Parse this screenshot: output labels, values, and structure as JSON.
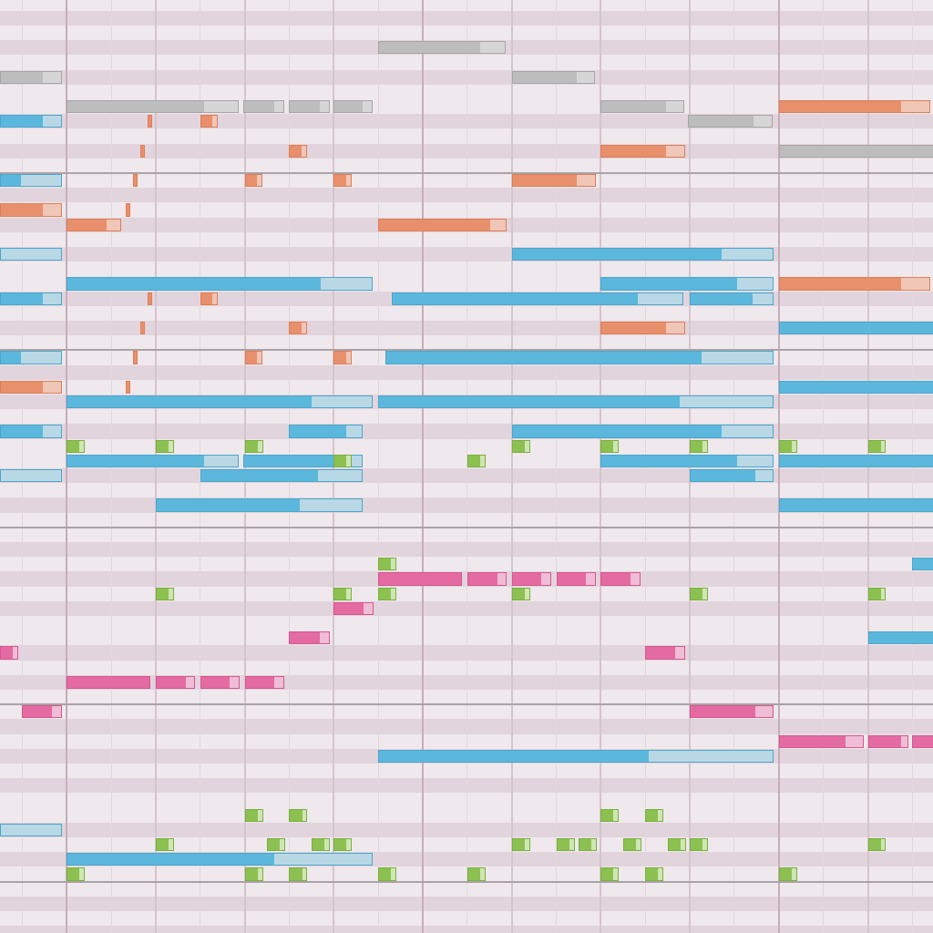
{
  "view": "piano-roll",
  "colors": {
    "row_light": "#efe8ec",
    "row_dark": "#e2d4dc",
    "beat_line": "#e3d6dd",
    "half_measure_line": "#d6c4cd",
    "measure_line": "#c7adbb",
    "octave_line": "#aaa2a6",
    "tracks": {
      "blue": {
        "fill": "#5bb8dc",
        "fade": "#b9d8e5",
        "border": "#4aa6cc"
      },
      "orange": {
        "fill": "#e8906c",
        "fade": "#f0c6b6",
        "border": "#dc7e58"
      },
      "gray": {
        "fill": "#bdbdbd",
        "fade": "#d6d6d6",
        "border": "#a6a6a6"
      },
      "green": {
        "fill": "#8cc152",
        "fade": "#cfe6b2",
        "border": "#79b040"
      },
      "pink": {
        "fill": "#e46aa2",
        "fade": "#efbdd5",
        "border": "#d65690"
      }
    }
  },
  "grid": {
    "beats_per_measure": 8,
    "first_beat": -1,
    "last_beat": 19
  },
  "notes": [
    {
      "row": 3,
      "start": 7,
      "len": 2.9,
      "fade": 0.55,
      "track": "gray"
    },
    {
      "row": 5,
      "start": -1.5,
      "len": 1.43,
      "fade": 0.4,
      "track": "gray"
    },
    {
      "row": 5,
      "start": 10,
      "len": 1.92,
      "fade": 0.4,
      "track": "gray"
    },
    {
      "row": 7,
      "start": 0,
      "len": 3.9,
      "fade": 0.75,
      "track": "gray"
    },
    {
      "row": 7,
      "start": 3.97,
      "len": 0.96,
      "fade": 0.2,
      "track": "gray"
    },
    {
      "row": 7,
      "start": 5,
      "len": 0.95,
      "fade": 0.2,
      "track": "gray"
    },
    {
      "row": 7,
      "start": 6,
      "len": 0.92,
      "fade": 0.2,
      "track": "gray"
    },
    {
      "row": 7,
      "start": 12,
      "len": 1.92,
      "fade": 0.4,
      "track": "gray"
    },
    {
      "row": 7,
      "start": 16,
      "len": 3.45,
      "fade": 0.65,
      "track": "orange"
    },
    {
      "row": 8,
      "start": -1.5,
      "len": 1.43,
      "fade": 0.4,
      "track": "blue"
    },
    {
      "row": 8,
      "start": 1.82,
      "len": 0.11,
      "fade": 0,
      "track": "orange"
    },
    {
      "row": 8,
      "start": 3,
      "len": 0.43,
      "fade": 0.1,
      "track": "orange"
    },
    {
      "row": 8,
      "start": 13.95,
      "len": 1.95,
      "fade": 0.4,
      "track": "gray"
    },
    {
      "row": 10,
      "start": 1.66,
      "len": 0.11,
      "fade": 0,
      "track": "orange"
    },
    {
      "row": 10,
      "start": 5,
      "len": 0.44,
      "fade": 0.1,
      "track": "orange"
    },
    {
      "row": 10,
      "start": 12,
      "len": 1.93,
      "fade": 0.4,
      "track": "orange"
    },
    {
      "row": 10,
      "start": 16,
      "len": 4,
      "fade": 0.3,
      "track": "gray"
    },
    {
      "row": 12,
      "start": -1.5,
      "len": 1.43,
      "fade": 0.9,
      "track": "blue"
    },
    {
      "row": 12,
      "start": 1.5,
      "len": 0.11,
      "fade": 0,
      "track": "orange"
    },
    {
      "row": 12,
      "start": 4,
      "len": 0.44,
      "fade": 0.1,
      "track": "orange"
    },
    {
      "row": 12,
      "start": 6,
      "len": 0.44,
      "fade": 0.1,
      "track": "orange"
    },
    {
      "row": 12,
      "start": 10,
      "len": 1.93,
      "fade": 0.4,
      "track": "orange"
    },
    {
      "row": 14,
      "start": -1.5,
      "len": 1.43,
      "fade": 0.4,
      "track": "orange"
    },
    {
      "row": 14,
      "start": 1.33,
      "len": 0.11,
      "fade": 0,
      "track": "orange"
    },
    {
      "row": 15,
      "start": 0,
      "len": 1.26,
      "fade": 0.3,
      "track": "orange"
    },
    {
      "row": 15,
      "start": 7,
      "len": 2.92,
      "fade": 0.35,
      "track": "orange"
    },
    {
      "row": 17,
      "start": -1.5,
      "len": 1.43,
      "fade": 1.43,
      "track": "blue"
    },
    {
      "row": 17,
      "start": 10,
      "len": 5.93,
      "fade": 1.15,
      "track": "blue"
    },
    {
      "row": 19,
      "start": 0,
      "len": 6.92,
      "fade": 1.15,
      "track": "blue"
    },
    {
      "row": 19,
      "start": 12,
      "len": 3.93,
      "fade": 0.8,
      "track": "blue"
    },
    {
      "row": 19,
      "start": 16,
      "len": 3.45,
      "fade": 0.65,
      "track": "orange"
    },
    {
      "row": 20,
      "start": -1.5,
      "len": 1.43,
      "fade": 0.4,
      "track": "blue"
    },
    {
      "row": 20,
      "start": 1.82,
      "len": 0.11,
      "fade": 0,
      "track": "orange"
    },
    {
      "row": 20,
      "start": 3,
      "len": 0.43,
      "fade": 0.1,
      "track": "orange"
    },
    {
      "row": 20,
      "start": 7.3,
      "len": 6.6,
      "fade": 1,
      "track": "blue"
    },
    {
      "row": 20,
      "start": 14,
      "len": 1.93,
      "fade": 0.45,
      "track": "blue"
    },
    {
      "row": 22,
      "start": 1.66,
      "len": 0.11,
      "fade": 0,
      "track": "orange"
    },
    {
      "row": 22,
      "start": 5,
      "len": 0.44,
      "fade": 0.1,
      "track": "orange"
    },
    {
      "row": 22,
      "start": 12,
      "len": 1.93,
      "fade": 0.4,
      "track": "orange"
    },
    {
      "row": 22,
      "start": 16,
      "len": 4,
      "fade": 0.3,
      "track": "blue"
    },
    {
      "row": 24,
      "start": -1.5,
      "len": 1.43,
      "fade": 0.9,
      "track": "blue"
    },
    {
      "row": 24,
      "start": 1.5,
      "len": 0.11,
      "fade": 0,
      "track": "orange"
    },
    {
      "row": 24,
      "start": 4,
      "len": 0.44,
      "fade": 0.1,
      "track": "orange"
    },
    {
      "row": 24,
      "start": 6,
      "len": 0.44,
      "fade": 0.1,
      "track": "orange"
    },
    {
      "row": 24,
      "start": 7.17,
      "len": 8.76,
      "fade": 1.6,
      "track": "blue"
    },
    {
      "row": 26,
      "start": -1.5,
      "len": 1.43,
      "fade": 0.4,
      "track": "orange"
    },
    {
      "row": 26,
      "start": 1.33,
      "len": 0.11,
      "fade": 0,
      "track": "orange"
    },
    {
      "row": 26,
      "start": 16,
      "len": 4,
      "fade": 0,
      "track": "blue"
    },
    {
      "row": 27,
      "start": 0,
      "len": 6.92,
      "fade": 1.35,
      "track": "blue"
    },
    {
      "row": 27,
      "start": 7,
      "len": 8.93,
      "fade": 2.1,
      "track": "blue"
    },
    {
      "row": 29,
      "start": -1.5,
      "len": 1.43,
      "fade": 0.4,
      "track": "blue"
    },
    {
      "row": 29,
      "start": 5,
      "len": 1.7,
      "fade": 0.35,
      "track": "blue"
    },
    {
      "row": 29,
      "start": 10,
      "len": 5.93,
      "fade": 1.15,
      "track": "blue"
    },
    {
      "row": 30,
      "start": 0,
      "len": 0.45,
      "fade": 0.1,
      "track": "green"
    },
    {
      "row": 30,
      "start": 2,
      "len": 0.45,
      "fade": 0.1,
      "track": "green"
    },
    {
      "row": 30,
      "start": 4,
      "len": 0.45,
      "fade": 0.1,
      "track": "green"
    },
    {
      "row": 30,
      "start": 10,
      "len": 0.45,
      "fade": 0.1,
      "track": "green"
    },
    {
      "row": 30,
      "start": 12,
      "len": 0.45,
      "fade": 0.1,
      "track": "green"
    },
    {
      "row": 30,
      "start": 14,
      "len": 0.45,
      "fade": 0.1,
      "track": "green"
    },
    {
      "row": 30,
      "start": 16,
      "len": 0.45,
      "fade": 0.1,
      "track": "green"
    },
    {
      "row": 30,
      "start": 18,
      "len": 0.45,
      "fade": 0.1,
      "track": "green"
    },
    {
      "row": 31,
      "start": 0,
      "len": 3.9,
      "fade": 0.75,
      "track": "blue"
    },
    {
      "row": 31,
      "start": 3.97,
      "len": 2.73,
      "fade": 0.3,
      "track": "blue"
    },
    {
      "row": 31,
      "start": 6,
      "len": 0.45,
      "fade": 0.1,
      "track": "green"
    },
    {
      "row": 31,
      "start": 9,
      "len": 0.45,
      "fade": 0.1,
      "track": "green"
    },
    {
      "row": 31,
      "start": 12,
      "len": 3.93,
      "fade": 0.8,
      "track": "blue"
    },
    {
      "row": 31,
      "start": 16,
      "len": 4,
      "fade": 0,
      "track": "blue"
    },
    {
      "row": 32,
      "start": -1.5,
      "len": 1.43,
      "fade": 1.43,
      "track": "blue"
    },
    {
      "row": 32,
      "start": 3,
      "len": 3.7,
      "fade": 1,
      "track": "blue"
    },
    {
      "row": 32,
      "start": 14,
      "len": 1.93,
      "fade": 0.4,
      "track": "blue"
    },
    {
      "row": 34,
      "start": 2,
      "len": 4.7,
      "fade": 1.4,
      "track": "blue"
    },
    {
      "row": 34,
      "start": 16,
      "len": 4,
      "fade": 0.3,
      "track": "blue"
    },
    {
      "row": 38,
      "start": 7,
      "len": 0.45,
      "fade": 0.1,
      "track": "green"
    },
    {
      "row": 38,
      "start": 19,
      "len": 1,
      "fade": 0,
      "track": "blue"
    },
    {
      "row": 39,
      "start": 7,
      "len": 1.92,
      "fade": 0,
      "track": "pink"
    },
    {
      "row": 39,
      "start": 9,
      "len": 0.93,
      "fade": 0.2,
      "track": "pink"
    },
    {
      "row": 39,
      "start": 10,
      "len": 0.93,
      "fade": 0.2,
      "track": "pink"
    },
    {
      "row": 39,
      "start": 11,
      "len": 0.93,
      "fade": 0.2,
      "track": "pink"
    },
    {
      "row": 39,
      "start": 12,
      "len": 0.93,
      "fade": 0.2,
      "track": "pink"
    },
    {
      "row": 40,
      "start": 2,
      "len": 0.45,
      "fade": 0.1,
      "track": "green"
    },
    {
      "row": 40,
      "start": 6,
      "len": 0.45,
      "fade": 0.1,
      "track": "green"
    },
    {
      "row": 40,
      "start": 7,
      "len": 0.45,
      "fade": 0.1,
      "track": "green"
    },
    {
      "row": 40,
      "start": 10,
      "len": 0.45,
      "fade": 0.1,
      "track": "green"
    },
    {
      "row": 40,
      "start": 14,
      "len": 0.45,
      "fade": 0.1,
      "track": "green"
    },
    {
      "row": 40,
      "start": 18,
      "len": 0.45,
      "fade": 0.1,
      "track": "green"
    },
    {
      "row": 41,
      "start": 6,
      "len": 0.93,
      "fade": 0.2,
      "track": "pink"
    },
    {
      "row": 43,
      "start": 5,
      "len": 0.95,
      "fade": 0.2,
      "track": "pink"
    },
    {
      "row": 43,
      "start": 18,
      "len": 2,
      "fade": 0,
      "track": "blue"
    },
    {
      "row": 44,
      "start": -1.5,
      "len": 0.45,
      "fade": 0.1,
      "track": "pink"
    },
    {
      "row": 44,
      "start": 13,
      "len": 0.93,
      "fade": 0.2,
      "track": "pink"
    },
    {
      "row": 46,
      "start": 0,
      "len": 1.92,
      "fade": 0,
      "track": "pink"
    },
    {
      "row": 46,
      "start": 2,
      "len": 0.93,
      "fade": 0.2,
      "track": "pink"
    },
    {
      "row": 46,
      "start": 3,
      "len": 0.93,
      "fade": 0.2,
      "track": "pink"
    },
    {
      "row": 46,
      "start": 4,
      "len": 0.93,
      "fade": 0.2,
      "track": "pink"
    },
    {
      "row": 48,
      "start": -1,
      "len": 0.93,
      "fade": 0.2,
      "track": "pink"
    },
    {
      "row": 48,
      "start": 14,
      "len": 1.93,
      "fade": 0.4,
      "track": "pink"
    },
    {
      "row": 50,
      "start": 16,
      "len": 1.95,
      "fade": 0.4,
      "track": "pink"
    },
    {
      "row": 50,
      "start": 18,
      "len": 0.95,
      "fade": 0.15,
      "track": "pink"
    },
    {
      "row": 50,
      "start": 19,
      "len": 1,
      "fade": 0,
      "track": "pink"
    },
    {
      "row": 51,
      "start": 7,
      "len": 8.93,
      "fade": 2.8,
      "track": "blue"
    },
    {
      "row": 55,
      "start": 4,
      "len": 0.45,
      "fade": 0.1,
      "track": "green"
    },
    {
      "row": 55,
      "start": 5,
      "len": 0.45,
      "fade": 0.1,
      "track": "green"
    },
    {
      "row": 55,
      "start": 12,
      "len": 0.45,
      "fade": 0.1,
      "track": "green"
    },
    {
      "row": 55,
      "start": 13,
      "len": 0.45,
      "fade": 0.1,
      "track": "green"
    },
    {
      "row": 56,
      "start": -1.5,
      "len": 1.43,
      "fade": 1.43,
      "track": "blue"
    },
    {
      "row": 57,
      "start": 2,
      "len": 0.45,
      "fade": 0.1,
      "track": "green"
    },
    {
      "row": 57,
      "start": 4.5,
      "len": 0.45,
      "fade": 0.1,
      "track": "green"
    },
    {
      "row": 57,
      "start": 5.5,
      "len": 0.45,
      "fade": 0.1,
      "track": "green"
    },
    {
      "row": 57,
      "start": 6,
      "len": 0.45,
      "fade": 0.1,
      "track": "green"
    },
    {
      "row": 57,
      "start": 10,
      "len": 0.45,
      "fade": 0.1,
      "track": "green"
    },
    {
      "row": 57,
      "start": 11,
      "len": 0.45,
      "fade": 0.1,
      "track": "green"
    },
    {
      "row": 57,
      "start": 11.5,
      "len": 0.45,
      "fade": 0.1,
      "track": "green"
    },
    {
      "row": 57,
      "start": 12.5,
      "len": 0.45,
      "fade": 0.1,
      "track": "green"
    },
    {
      "row": 57,
      "start": 13.5,
      "len": 0.45,
      "fade": 0.1,
      "track": "green"
    },
    {
      "row": 57,
      "start": 14,
      "len": 0.45,
      "fade": 0.1,
      "track": "green"
    },
    {
      "row": 57,
      "start": 18,
      "len": 0.45,
      "fade": 0.1,
      "track": "green"
    },
    {
      "row": 58,
      "start": 0,
      "len": 6.92,
      "fade": 2.2,
      "track": "blue"
    },
    {
      "row": 59,
      "start": 0,
      "len": 0.45,
      "fade": 0.1,
      "track": "green"
    },
    {
      "row": 59,
      "start": 4,
      "len": 0.45,
      "fade": 0.1,
      "track": "green"
    },
    {
      "row": 59,
      "start": 5,
      "len": 0.45,
      "fade": 0.1,
      "track": "green"
    },
    {
      "row": 59,
      "start": 7,
      "len": 0.45,
      "fade": 0.1,
      "track": "green"
    },
    {
      "row": 59,
      "start": 9,
      "len": 0.45,
      "fade": 0.1,
      "track": "green"
    },
    {
      "row": 59,
      "start": 12,
      "len": 0.45,
      "fade": 0.1,
      "track": "green"
    },
    {
      "row": 59,
      "start": 13,
      "len": 0.45,
      "fade": 0.1,
      "track": "green"
    },
    {
      "row": 59,
      "start": 16,
      "len": 0.45,
      "fade": 0.1,
      "track": "green"
    }
  ]
}
